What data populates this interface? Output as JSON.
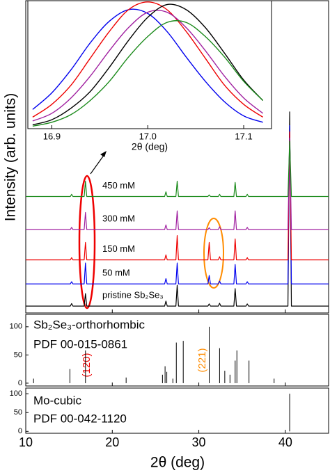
{
  "chart_data": [
    {
      "type": "line",
      "xlabel": "2θ (deg)",
      "xlim": [
        16.875,
        17.129
      ],
      "xticks": [
        16.9,
        {
          "value": 17,
          "label": "17.0"
        },
        17.1
      ],
      "ylim": [
        0,
        1
      ],
      "x": [
        16.88,
        16.9,
        16.92,
        16.94,
        16.96,
        16.98,
        17.0,
        17.02,
        17.04,
        17.06,
        17.08,
        17.1,
        17.12
      ],
      "series": [
        {
          "color": "#0000ee",
          "values": [
            0.15,
            0.28,
            0.46,
            0.67,
            0.84,
            0.93,
            0.9,
            0.76,
            0.56,
            0.37,
            0.21,
            0.1,
            0.05
          ]
        },
        {
          "color": "#ee0000",
          "values": [
            0.09,
            0.19,
            0.34,
            0.55,
            0.76,
            0.93,
            0.99,
            0.93,
            0.76,
            0.55,
            0.34,
            0.19,
            0.09
          ]
        },
        {
          "color": "#a020a0",
          "values": [
            0.06,
            0.12,
            0.24,
            0.41,
            0.61,
            0.79,
            0.91,
            0.91,
            0.79,
            0.61,
            0.41,
            0.24,
            0.12
          ]
        },
        {
          "color": "#000000",
          "values": [
            0.03,
            0.07,
            0.16,
            0.29,
            0.48,
            0.69,
            0.87,
            0.97,
            0.93,
            0.79,
            0.59,
            0.38,
            0.22
          ]
        },
        {
          "color": "#1a8a1a",
          "values": [
            0.02,
            0.05,
            0.11,
            0.22,
            0.37,
            0.56,
            0.72,
            0.83,
            0.83,
            0.72,
            0.56,
            0.37,
            0.22
          ]
        }
      ]
    },
    {
      "type": "line",
      "ylabel": "Intensity (arb. units)",
      "xlim": [
        10,
        45
      ],
      "ylim": [
        0,
        100
      ],
      "x": [
        10,
        15.15,
        15.3,
        15.45,
        16.75,
        16.9,
        17.05,
        26.05,
        26.2,
        26.35,
        27.35,
        27.5,
        27.65,
        31.05,
        31.2,
        31.35,
        32.25,
        32.4,
        32.55,
        34.05,
        34.2,
        34.35,
        35.45,
        35.6,
        35.75,
        40.3,
        40.5,
        40.7,
        45
      ],
      "series": [
        {
          "name": "pristine Sb₂Se₃",
          "color": "#000000",
          "values": [
            2.2,
            2.2,
            3.0,
            2.2,
            2.2,
            6.2,
            2.2,
            2.2,
            3.8,
            2.2,
            2.2,
            8.9,
            2.2,
            2.2,
            2.9,
            2.2,
            2.2,
            3.1,
            2.2,
            2.2,
            7.8,
            2.2,
            2.2,
            2.9,
            2.2,
            2.2,
            64.4,
            2.2,
            2.2
          ]
        },
        {
          "name": "50 mM",
          "color": "#0000ee",
          "values": [
            9.3,
            9.3,
            10.0,
            9.3,
            9.3,
            16.0,
            9.3,
            9.3,
            11.0,
            9.3,
            9.3,
            16.0,
            9.3,
            9.3,
            12.0,
            9.3,
            9.3,
            10.2,
            9.3,
            9.3,
            15.5,
            9.3,
            9.3,
            10.0,
            9.3,
            9.3,
            60,
            9.3,
            9.3
          ]
        },
        {
          "name": "150 mM",
          "color": "#ee0000",
          "values": [
            17,
            17,
            17.7,
            17,
            17,
            22.6,
            17,
            17,
            18.6,
            17,
            17,
            24.8,
            17,
            17,
            22.6,
            17,
            17,
            18.0,
            17,
            17,
            23.7,
            17,
            17,
            17.7,
            17,
            17,
            58,
            17,
            17
          ]
        },
        {
          "name": "300 mM",
          "color": "#a020a0",
          "values": [
            26.7,
            26.7,
            27.4,
            26.7,
            26.7,
            32.2,
            26.7,
            26.7,
            28.2,
            26.7,
            26.7,
            32.7,
            26.7,
            26.7,
            27.3,
            26.7,
            26.7,
            27.6,
            26.7,
            26.7,
            32.7,
            26.7,
            26.7,
            27.4,
            26.7,
            26.7,
            56,
            26.7,
            26.7
          ]
        },
        {
          "name": "450 mM",
          "color": "#1a8a1a",
          "values": [
            37.3,
            37.3,
            38.0,
            37.3,
            37.3,
            42.2,
            37.3,
            37.3,
            38.8,
            37.3,
            37.3,
            42.2,
            37.3,
            37.3,
            37.8,
            37.3,
            37.3,
            38.0,
            37.3,
            37.3,
            41.8,
            37.3,
            37.3,
            38.0,
            37.3,
            37.3,
            55,
            37.3,
            37.3
          ]
        }
      ]
    },
    {
      "type": "bar",
      "title": "Sb₂Se₃-orthorhombic",
      "subtitle": "PDF 00-015-0861",
      "annotations": [
        "(120)",
        "(221)"
      ],
      "color": "#000000",
      "xlim": [
        10,
        45
      ],
      "ylim": [
        -5,
        122
      ],
      "yticks": [
        0,
        50,
        100
      ],
      "x": [
        10.9,
        15.1,
        16.9,
        21.6,
        25.8,
        26.1,
        26.3,
        27.0,
        27.4,
        28.2,
        31.2,
        32.4,
        33.0,
        33.6,
        34.2,
        34.4,
        35.8,
        38.7
      ],
      "values": [
        8,
        25,
        58,
        10,
        15,
        30,
        20,
        8,
        72,
        75,
        100,
        62,
        22,
        15,
        40,
        58,
        40,
        8
      ]
    },
    {
      "type": "bar",
      "title": "Mo-cubic",
      "subtitle": "PDF 00-042-1120",
      "xlabel": "2θ (deg)",
      "color": "#000000",
      "xlim": [
        10,
        45
      ],
      "ylim": [
        -5,
        115
      ],
      "yticks": [
        0,
        50,
        100
      ],
      "xticks": [
        10,
        20,
        30,
        40
      ],
      "x": [
        40.5
      ],
      "values": [
        100
      ]
    }
  ]
}
